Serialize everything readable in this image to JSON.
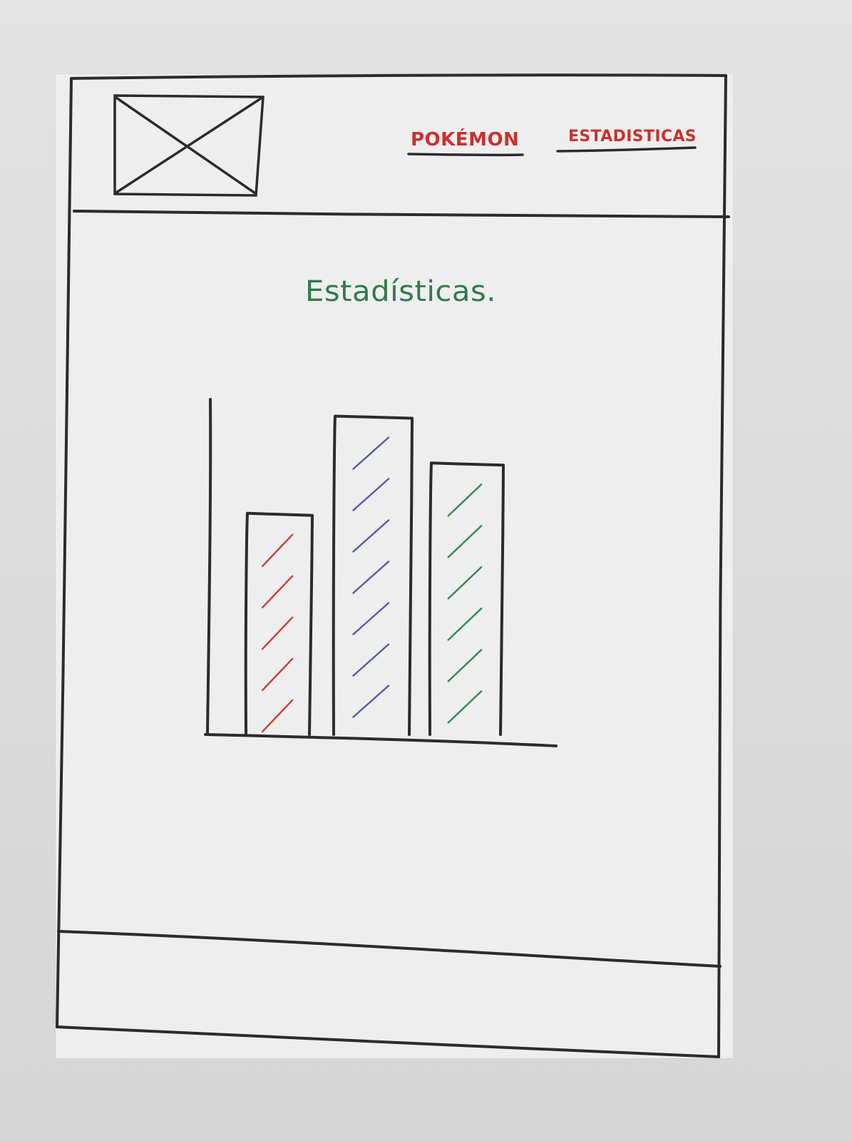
{
  "nav": {
    "items": [
      {
        "label": "POKÉMON"
      },
      {
        "label": "ESTADISTICAS"
      }
    ]
  },
  "main": {
    "title": "Estadísticas."
  },
  "colors": {
    "ink": "#2b2b2b",
    "nav_red": "#c8312f",
    "title_green": "#2f7a4c",
    "bar_hatch": [
      "#c8413a",
      "#5a5aa8",
      "#3a8a5a"
    ]
  },
  "chart_data": {
    "type": "bar",
    "categories": [
      "",
      "",
      ""
    ],
    "values": [
      66,
      95,
      81
    ],
    "ylim": [
      0,
      100
    ],
    "grid": false
  }
}
